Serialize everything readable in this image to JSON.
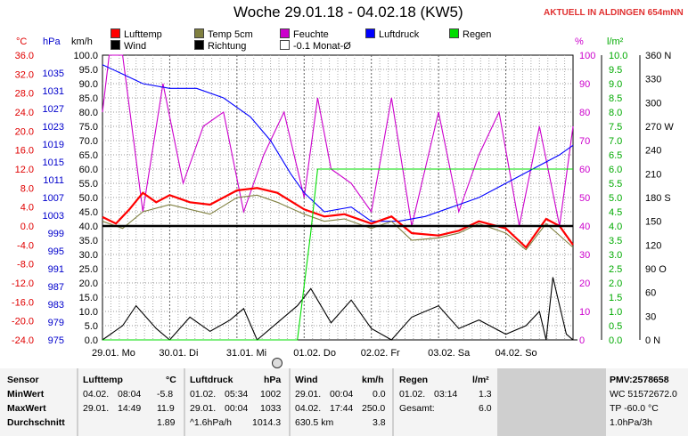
{
  "title": "Woche 29.01.18 - 04.02.18 (KW5)",
  "station": "AKTUELL IN ALDINGEN 654mNN",
  "legend": [
    {
      "label": "Lufttemp",
      "color": "#ff0000"
    },
    {
      "label": "Temp 5cm",
      "color": "#808040"
    },
    {
      "label": "Feuchte",
      "color": "#cc00cc"
    },
    {
      "label": "Luftdruck",
      "color": "#0000ff"
    },
    {
      "label": "Regen",
      "color": "#00dd00"
    },
    {
      "label": "Wind",
      "color": "#000000"
    },
    {
      "label": "Richtung",
      "color": "#000000"
    },
    {
      "label": "-0.1 Monat-Ø",
      "color": "#ffffff"
    }
  ],
  "units": {
    "temp": "°C",
    "press": "hPa",
    "wind": "km/h",
    "hum": "%",
    "rain": "l/m²"
  },
  "chart_data": {
    "type": "line",
    "x_labels": [
      "29.01. Mo",
      "30.01. Di",
      "31.01. Mi",
      "01.02. Do",
      "02.02. Fr",
      "03.02. Sa",
      "04.02. So"
    ],
    "axes": {
      "temp": {
        "range": [
          -24.0,
          36.0
        ],
        "ticks": [
          "36.0",
          "32.0",
          "28.0",
          "24.0",
          "20.0",
          "16.0",
          "12.0",
          "8.0",
          "4.0",
          "0.0",
          "-4.0",
          "-8.0",
          "-12.0",
          "-16.0",
          "-20.0",
          "-24.0"
        ]
      },
      "press": {
        "range": [
          975,
          1035
        ],
        "ticks": [
          "",
          "1035",
          "1031",
          "1027",
          "1023",
          "1019",
          "1015",
          "1011",
          "1007",
          "1003",
          "999",
          "995",
          "991",
          "987",
          "983",
          "979",
          "975"
        ]
      },
      "wind": {
        "range": [
          0,
          100
        ],
        "ticks": [
          "100.0",
          "95.0",
          "90.0",
          "85.0",
          "80.0",
          "75.0",
          "70.0",
          "65.0",
          "60.0",
          "55.0",
          "50.0",
          "45.0",
          "40.0",
          "35.0",
          "30.0",
          "25.0",
          "20.0",
          "15.0",
          "10.0",
          "5.0",
          "0.0"
        ]
      },
      "hum": {
        "range": [
          0,
          100
        ],
        "ticks": [
          "100",
          "90",
          "80",
          "70",
          "60",
          "50",
          "40",
          "30",
          "20",
          "10",
          "0"
        ]
      },
      "rain": {
        "range": [
          0,
          10
        ],
        "ticks": [
          "10.0",
          "9.5",
          "9.0",
          "8.5",
          "8.0",
          "7.5",
          "7.0",
          "6.5",
          "6.0",
          "5.5",
          "5.0",
          "4.5",
          "4.0",
          "3.5",
          "3.0",
          "2.5",
          "2.0",
          "1.5",
          "1.0",
          "0.5",
          "0.0"
        ]
      },
      "dir": {
        "range": [
          0,
          360
        ],
        "ticks": [
          "360 N",
          "330",
          "300",
          "270 W",
          "240",
          "210",
          "180 S",
          "150",
          "120",
          "90 O",
          "60",
          "30",
          "0 N"
        ]
      }
    },
    "series": [
      {
        "name": "Lufttemp",
        "axis": "temp",
        "color": "#ff0000",
        "x": [
          0,
          0.2,
          0.4,
          0.6,
          0.8,
          1.0,
          1.3,
          1.6,
          2.0,
          2.3,
          2.6,
          3.0,
          3.3,
          3.6,
          4.0,
          4.3,
          4.6,
          5.0,
          5.3,
          5.6,
          6.0,
          6.3,
          6.6,
          6.8,
          7.0
        ],
        "y": [
          1.9,
          0.5,
          3.5,
          7.0,
          5.0,
          6.5,
          5.0,
          4.5,
          7.5,
          8.0,
          7.0,
          3.5,
          2.0,
          2.5,
          0.5,
          2.0,
          -1.5,
          -2.0,
          -1.0,
          1.0,
          -0.5,
          -4.5,
          1.5,
          0.0,
          -4.0
        ]
      },
      {
        "name": "Temp 5cm",
        "axis": "temp",
        "color": "#808040",
        "x": [
          0,
          0.3,
          0.6,
          1.0,
          1.3,
          1.6,
          2.0,
          2.3,
          2.6,
          3.0,
          3.3,
          3.6,
          4.0,
          4.3,
          4.6,
          5.0,
          5.3,
          5.6,
          6.0,
          6.3,
          6.6,
          7.0
        ],
        "y": [
          1.0,
          -0.5,
          3.0,
          4.5,
          3.5,
          2.5,
          6.0,
          6.5,
          5.0,
          2.5,
          1.0,
          1.5,
          -0.5,
          1.0,
          -3.0,
          -2.5,
          -1.5,
          0.5,
          -1.5,
          -5.0,
          0.5,
          -4.5
        ]
      },
      {
        "name": "Feuchte",
        "axis": "hum",
        "color": "#cc00cc",
        "x": [
          0,
          0.1,
          0.3,
          0.6,
          0.9,
          1.2,
          1.5,
          1.8,
          2.1,
          2.4,
          2.7,
          3.0,
          3.2,
          3.4,
          3.7,
          4.0,
          4.3,
          4.6,
          5.0,
          5.3,
          5.6,
          5.9,
          6.2,
          6.5,
          6.8,
          7.0
        ],
        "y": [
          80,
          100,
          100,
          45,
          90,
          55,
          75,
          80,
          45,
          65,
          80,
          50,
          85,
          60,
          55,
          45,
          85,
          40,
          80,
          45,
          65,
          80,
          40,
          75,
          40,
          75
        ]
      },
      {
        "name": "Luftdruck",
        "axis": "press",
        "color": "#0000ff",
        "x": [
          0,
          0.3,
          0.6,
          1.0,
          1.4,
          1.8,
          2.2,
          2.5,
          2.8,
          3.0,
          3.3,
          3.7,
          4.0,
          4.4,
          4.8,
          5.2,
          5.6,
          6.0,
          6.4,
          6.8,
          7.0
        ],
        "y": [
          1033,
          1031,
          1029,
          1028,
          1028,
          1026,
          1022,
          1017,
          1010,
          1006,
          1002,
          1003,
          1000,
          1000,
          1001,
          1003,
          1005,
          1008,
          1011,
          1014,
          1016
        ]
      },
      {
        "name": "Wind",
        "axis": "wind",
        "color": "#000000",
        "x": [
          0,
          0.3,
          0.5,
          0.8,
          1.0,
          1.3,
          1.6,
          1.9,
          2.1,
          2.3,
          2.6,
          2.9,
          3.1,
          3.4,
          3.7,
          4.0,
          4.3,
          4.6,
          5.0,
          5.3,
          5.6,
          6.0,
          6.3,
          6.5,
          6.6,
          6.7,
          6.9,
          7.0
        ],
        "y": [
          0,
          5,
          12,
          4,
          0,
          8,
          3,
          7,
          11,
          0,
          6,
          12,
          18,
          6,
          14,
          4,
          0,
          8,
          12,
          4,
          7,
          2,
          5,
          10,
          0,
          22,
          2,
          0
        ]
      }
    ],
    "wind_avg_line": 40,
    "regen": {
      "axis": "rain",
      "color": "#00dd00",
      "x": [
        0,
        2.9,
        3.1,
        3.2,
        7.0
      ],
      "y": [
        0,
        0,
        3.8,
        6.0,
        6.0
      ]
    }
  },
  "summary": {
    "headers": {
      "sensor": "Sensor",
      "lufttemp": "Lufttemp",
      "lufttemp_unit": "°C",
      "luftdruck": "Luftdruck",
      "luftdruck_unit": "hPa",
      "wind": "Wind",
      "wind_unit": "km/h",
      "regen": "Regen",
      "regen_unit": "l/m²"
    },
    "row_labels": [
      "MinWert",
      "MaxWert",
      "Durchschnitt"
    ],
    "lufttemp": [
      [
        "04.02.",
        "08:04",
        "-5.8"
      ],
      [
        "29.01.",
        "14:49",
        "11.9"
      ],
      [
        "",
        "",
        "1.89"
      ]
    ],
    "luftdruck": [
      [
        "01.02.",
        "05:34",
        "1002"
      ],
      [
        "29.01.",
        "00:04",
        "1033"
      ],
      [
        "^1.6hPa/h",
        "",
        "1014.3"
      ]
    ],
    "wind": [
      [
        "29.01.",
        "00:04",
        "0.0"
      ],
      [
        "04.02.",
        "17:44",
        "250.0"
      ],
      [
        "630.5 km",
        "",
        "3.8"
      ]
    ],
    "regen": [
      [
        "01.02.",
        "03:14",
        "1.3"
      ],
      [
        "Gesamt:",
        "",
        "6.0"
      ]
    ],
    "pmv": [
      "PMV:2578658",
      "WC 51572672.0",
      "TP -60.0 °C",
      "1.0hPa/3h"
    ]
  }
}
